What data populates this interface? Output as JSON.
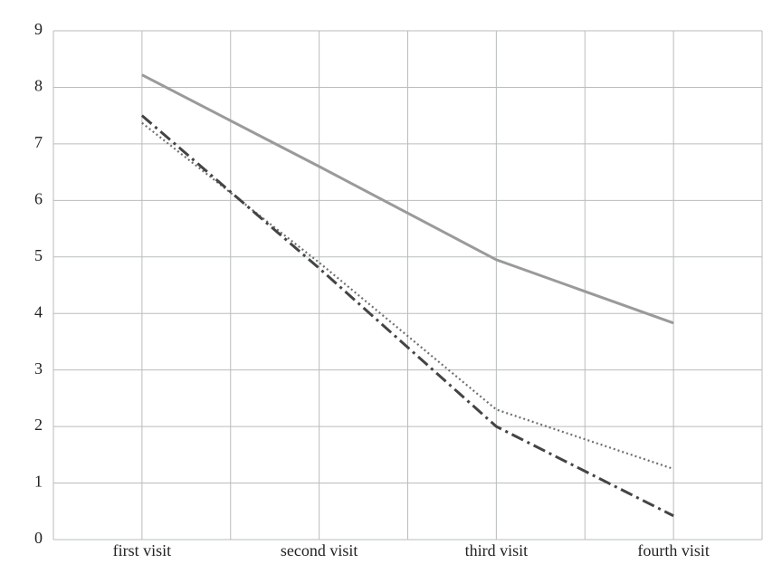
{
  "chart_data": {
    "type": "line",
    "categories": [
      "first visit",
      "second visit",
      "third visit",
      "fourth visit"
    ],
    "series": [
      {
        "color": "#9a9a9a",
        "dash": "solid",
        "values": [
          8.22,
          6.6,
          4.95,
          3.83
        ]
      },
      {
        "color": "#707070",
        "dash": "dotted",
        "values": [
          7.37,
          4.9,
          2.3,
          1.25
        ]
      },
      {
        "color": "#444444",
        "dash": "dashdot",
        "values": [
          7.5,
          4.8,
          2.0,
          0.42
        ]
      }
    ],
    "ylim": [
      0,
      9
    ],
    "yticks": [
      0,
      1,
      2,
      3,
      4,
      5,
      6,
      7,
      8,
      9
    ],
    "grid": true
  }
}
